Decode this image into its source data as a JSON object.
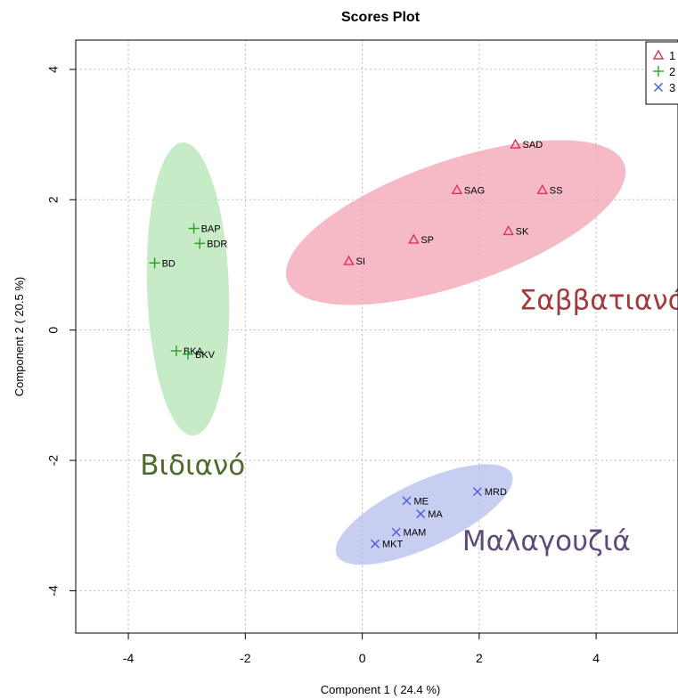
{
  "chart_data": {
    "type": "scatter",
    "title": "Scores Plot",
    "xlabel": "Component 1 ( 24.4 %)",
    "ylabel": "Component 2 ( 20.5 %)",
    "xlim": [
      -4.9,
      5.4
    ],
    "ylim": [
      -4.65,
      4.45
    ],
    "xticks": [
      -4,
      -2,
      0,
      2,
      4
    ],
    "yticks": [
      -4,
      -2,
      0,
      2,
      4
    ],
    "grid": true,
    "legend_position": "top-right",
    "series": [
      {
        "name": "1",
        "marker": "triangle",
        "color": "#e0305a",
        "ellipse_color": "#f4a6b6",
        "points": [
          {
            "label": "SAD",
            "x": 2.62,
            "y": 2.85
          },
          {
            "label": "SAG",
            "x": 1.62,
            "y": 2.15
          },
          {
            "label": "SS",
            "x": 3.08,
            "y": 2.15
          },
          {
            "label": "SK",
            "x": 2.5,
            "y": 1.52
          },
          {
            "label": "SP",
            "x": 0.88,
            "y": 1.39
          },
          {
            "label": "SI",
            "x": -0.23,
            "y": 1.06
          }
        ],
        "ellipse": {
          "cx": 1.6,
          "cy": 1.65,
          "rx": 3.05,
          "ry": 0.95,
          "angle_deg": 19
        }
      },
      {
        "name": "2",
        "marker": "plus",
        "color": "#2ca02c",
        "ellipse_color": "#b7e4b7",
        "points": [
          {
            "label": "BAP",
            "x": -2.88,
            "y": 1.56
          },
          {
            "label": "BDR",
            "x": -2.78,
            "y": 1.33
          },
          {
            "label": "BD",
            "x": -3.55,
            "y": 1.03
          },
          {
            "label": "BKA",
            "x": -3.18,
            "y": -0.32
          },
          {
            "label": "BKV",
            "x": -2.98,
            "y": -0.37
          }
        ],
        "ellipse": {
          "cx": -2.98,
          "cy": 0.63,
          "rx": 0.7,
          "ry": 2.25,
          "angle_deg": 2
        }
      },
      {
        "name": "3",
        "marker": "x",
        "color": "#4a5ae0",
        "ellipse_color": "#b8c0ee",
        "points": [
          {
            "label": "MRD",
            "x": 1.97,
            "y": -2.48
          },
          {
            "label": "ME",
            "x": 0.76,
            "y": -2.62
          },
          {
            "label": "MA",
            "x": 1.0,
            "y": -2.82
          },
          {
            "label": "MAM",
            "x": 0.58,
            "y": -3.1
          },
          {
            "label": "MKT",
            "x": 0.22,
            "y": -3.28
          }
        ],
        "ellipse": {
          "cx": 1.06,
          "cy": -2.83,
          "rx": 1.65,
          "ry": 0.5,
          "angle_deg": 25
        }
      }
    ],
    "annotations": [
      {
        "text": "Σαββατιανό",
        "x": 4.1,
        "y": 0.32,
        "color": "#a13a3e"
      },
      {
        "text": "Βιδιανό",
        "x": -2.9,
        "y": -2.22,
        "color": "#4e6b2a"
      },
      {
        "text": "Μαλαγουζιά",
        "x": 3.15,
        "y": -3.38,
        "color": "#5e4a7a"
      }
    ]
  }
}
